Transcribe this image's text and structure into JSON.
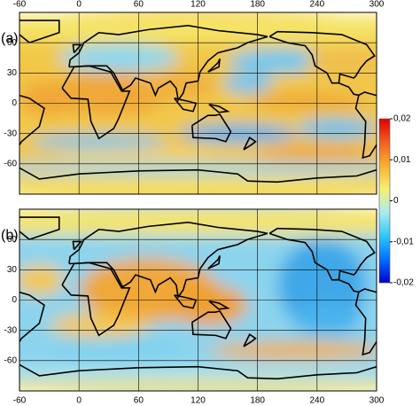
{
  "panels": [
    {
      "label": "(a)"
    },
    {
      "label": "(b)"
    }
  ],
  "map": {
    "xlim": [
      -60,
      300
    ],
    "ylim": [
      -90,
      90
    ],
    "xticks": [
      -60,
      0,
      60,
      120,
      180,
      240,
      300
    ],
    "yticks": [
      60,
      30,
      0,
      -30,
      -60
    ],
    "grid": true
  },
  "colorbar": {
    "lim": [
      -0.02,
      0.02
    ],
    "ticks": [
      {
        "value": 0.02,
        "label": "0,02"
      },
      {
        "value": 0.01,
        "label": "0,01"
      },
      0,
      {
        "value": -0.01,
        "label": "-0,01"
      },
      {
        "value": -0.02,
        "label": "-0,02"
      }
    ],
    "colors": [
      "#0000d0",
      "#0070ff",
      "#30c8f8",
      "#a8ecf0",
      "#f8f070",
      "#f8b030",
      "#f06020",
      "#e00000"
    ]
  }
}
